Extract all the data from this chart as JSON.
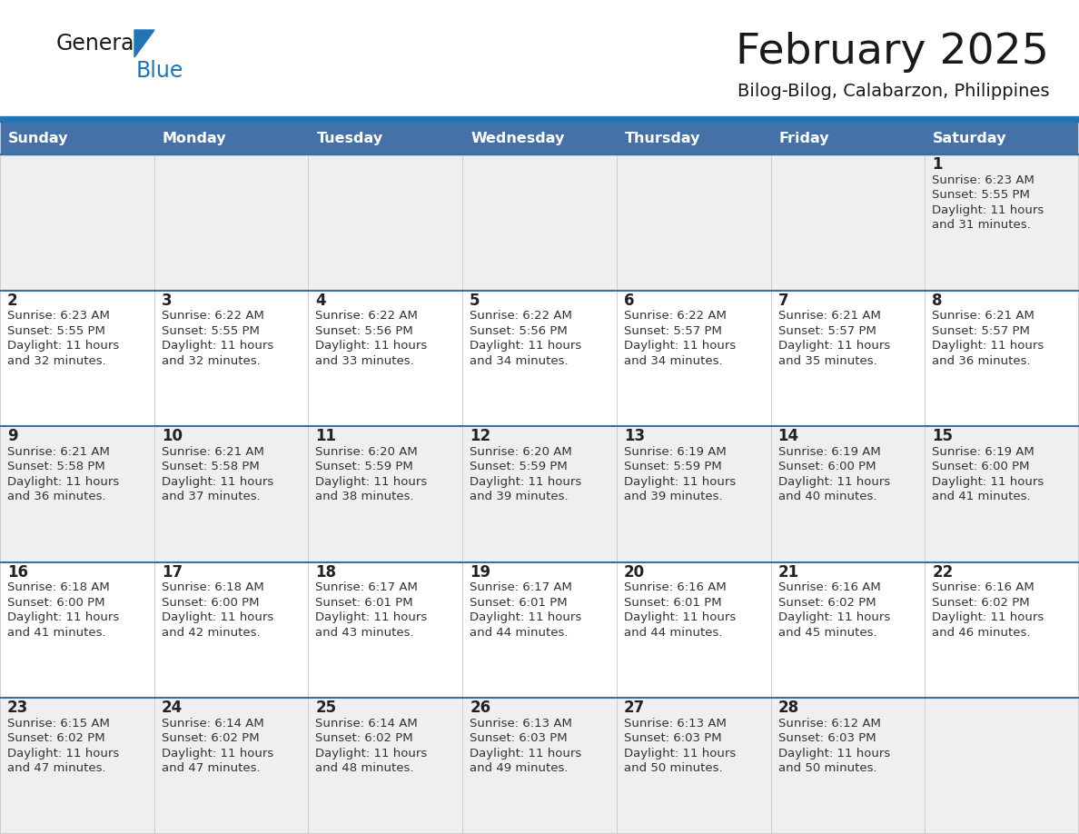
{
  "title": "February 2025",
  "subtitle": "Bilog-Bilog, Calabarzon, Philippines",
  "days_of_week": [
    "Sunday",
    "Monday",
    "Tuesday",
    "Wednesday",
    "Thursday",
    "Friday",
    "Saturday"
  ],
  "header_bg": "#4472A8",
  "header_text": "#FFFFFF",
  "row_bg_odd": "#EFEFEF",
  "row_bg_even": "#FFFFFF",
  "title_color": "#1A1A1A",
  "subtitle_color": "#1A1A1A",
  "logo_general_color": "#1A1A1A",
  "logo_blue_color": "#2175B5",
  "header_line_color": "#2175B5",
  "week_border_color": "#3A6FA0",
  "calendar_data": [
    [
      null,
      null,
      null,
      null,
      null,
      null,
      {
        "day": 1,
        "sunrise": "6:23 AM",
        "sunset": "5:55 PM",
        "daylight_h": "11 hours",
        "daylight_m": "and 31 minutes."
      }
    ],
    [
      {
        "day": 2,
        "sunrise": "6:23 AM",
        "sunset": "5:55 PM",
        "daylight_h": "11 hours",
        "daylight_m": "and 32 minutes."
      },
      {
        "day": 3,
        "sunrise": "6:22 AM",
        "sunset": "5:55 PM",
        "daylight_h": "11 hours",
        "daylight_m": "and 32 minutes."
      },
      {
        "day": 4,
        "sunrise": "6:22 AM",
        "sunset": "5:56 PM",
        "daylight_h": "11 hours",
        "daylight_m": "and 33 minutes."
      },
      {
        "day": 5,
        "sunrise": "6:22 AM",
        "sunset": "5:56 PM",
        "daylight_h": "11 hours",
        "daylight_m": "and 34 minutes."
      },
      {
        "day": 6,
        "sunrise": "6:22 AM",
        "sunset": "5:57 PM",
        "daylight_h": "11 hours",
        "daylight_m": "and 34 minutes."
      },
      {
        "day": 7,
        "sunrise": "6:21 AM",
        "sunset": "5:57 PM",
        "daylight_h": "11 hours",
        "daylight_m": "and 35 minutes."
      },
      {
        "day": 8,
        "sunrise": "6:21 AM",
        "sunset": "5:57 PM",
        "daylight_h": "11 hours",
        "daylight_m": "and 36 minutes."
      }
    ],
    [
      {
        "day": 9,
        "sunrise": "6:21 AM",
        "sunset": "5:58 PM",
        "daylight_h": "11 hours",
        "daylight_m": "and 36 minutes."
      },
      {
        "day": 10,
        "sunrise": "6:21 AM",
        "sunset": "5:58 PM",
        "daylight_h": "11 hours",
        "daylight_m": "and 37 minutes."
      },
      {
        "day": 11,
        "sunrise": "6:20 AM",
        "sunset": "5:59 PM",
        "daylight_h": "11 hours",
        "daylight_m": "and 38 minutes."
      },
      {
        "day": 12,
        "sunrise": "6:20 AM",
        "sunset": "5:59 PM",
        "daylight_h": "11 hours",
        "daylight_m": "and 39 minutes."
      },
      {
        "day": 13,
        "sunrise": "6:19 AM",
        "sunset": "5:59 PM",
        "daylight_h": "11 hours",
        "daylight_m": "and 39 minutes."
      },
      {
        "day": 14,
        "sunrise": "6:19 AM",
        "sunset": "6:00 PM",
        "daylight_h": "11 hours",
        "daylight_m": "and 40 minutes."
      },
      {
        "day": 15,
        "sunrise": "6:19 AM",
        "sunset": "6:00 PM",
        "daylight_h": "11 hours",
        "daylight_m": "and 41 minutes."
      }
    ],
    [
      {
        "day": 16,
        "sunrise": "6:18 AM",
        "sunset": "6:00 PM",
        "daylight_h": "11 hours",
        "daylight_m": "and 41 minutes."
      },
      {
        "day": 17,
        "sunrise": "6:18 AM",
        "sunset": "6:00 PM",
        "daylight_h": "11 hours",
        "daylight_m": "and 42 minutes."
      },
      {
        "day": 18,
        "sunrise": "6:17 AM",
        "sunset": "6:01 PM",
        "daylight_h": "11 hours",
        "daylight_m": "and 43 minutes."
      },
      {
        "day": 19,
        "sunrise": "6:17 AM",
        "sunset": "6:01 PM",
        "daylight_h": "11 hours",
        "daylight_m": "and 44 minutes."
      },
      {
        "day": 20,
        "sunrise": "6:16 AM",
        "sunset": "6:01 PM",
        "daylight_h": "11 hours",
        "daylight_m": "and 44 minutes."
      },
      {
        "day": 21,
        "sunrise": "6:16 AM",
        "sunset": "6:02 PM",
        "daylight_h": "11 hours",
        "daylight_m": "and 45 minutes."
      },
      {
        "day": 22,
        "sunrise": "6:16 AM",
        "sunset": "6:02 PM",
        "daylight_h": "11 hours",
        "daylight_m": "and 46 minutes."
      }
    ],
    [
      {
        "day": 23,
        "sunrise": "6:15 AM",
        "sunset": "6:02 PM",
        "daylight_h": "11 hours",
        "daylight_m": "and 47 minutes."
      },
      {
        "day": 24,
        "sunrise": "6:14 AM",
        "sunset": "6:02 PM",
        "daylight_h": "11 hours",
        "daylight_m": "and 47 minutes."
      },
      {
        "day": 25,
        "sunrise": "6:14 AM",
        "sunset": "6:02 PM",
        "daylight_h": "11 hours",
        "daylight_m": "and 48 minutes."
      },
      {
        "day": 26,
        "sunrise": "6:13 AM",
        "sunset": "6:03 PM",
        "daylight_h": "11 hours",
        "daylight_m": "and 49 minutes."
      },
      {
        "day": 27,
        "sunrise": "6:13 AM",
        "sunset": "6:03 PM",
        "daylight_h": "11 hours",
        "daylight_m": "and 50 minutes."
      },
      {
        "day": 28,
        "sunrise": "6:12 AM",
        "sunset": "6:03 PM",
        "daylight_h": "11 hours",
        "daylight_m": "and 50 minutes."
      },
      null
    ]
  ]
}
